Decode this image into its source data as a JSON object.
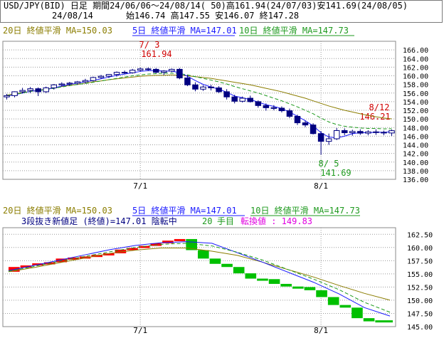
{
  "header": {
    "line1": "USD/JPY(BID) 日足 期間24/06/06～24/08/14( 50)高161.94(24/07/03)安141.69(24/08/05)",
    "date": "24/08/14",
    "ohlc": "始146.74 高147.55 安146.07 終147.28"
  },
  "colors": {
    "ma20": "#8b7d00",
    "ma5": "#1a1aff",
    "ma10": "#1e9a1e",
    "candle_down": "#000080",
    "high_label": "#d00000",
    "low_label": "#00a000",
    "brick_up": "#ff0000",
    "brick_down": "#00c000",
    "turn_value": "#e000e0",
    "grid": "#9a9a9a"
  },
  "top_panel": {
    "legend": {
      "ma20": "20日 終値平滑 MA=150.03",
      "ma5": "5日 終値平滑 MA=147.01",
      "ma10": "10日 終値平滑 MA=147.73"
    },
    "annotations": {
      "high_date": "7/ 3",
      "high_value": "161.94",
      "low_date": "8/ 5",
      "low_value": "141.69",
      "last_date": "8/12",
      "last_value": "146.21"
    }
  },
  "bottom_panel": {
    "legend": {
      "ma20": "20日 終値平滑 MA=150.03",
      "ma5": "5日 終値平滑 MA=147.01",
      "ma10": "10日 終値平滑 MA=147.73"
    },
    "status_line": "3段抜き新値足 (終値)=147.01 陰転中",
    "step_num": "20",
    "step_label": "手目",
    "turn_label": "転換値 : 149.83"
  },
  "chart_data": [
    {
      "type": "candlestick",
      "title": "USD/JPY(BID) 日足",
      "x_tick_labels": [
        "7/1",
        "8/1"
      ],
      "x_tick_index": [
        17,
        40
      ],
      "ylim": [
        136,
        168
      ],
      "y_ticks": [
        "136.00",
        "138.00",
        "140.00",
        "142.00",
        "144.00",
        "146.00",
        "148.00",
        "150.00",
        "152.00",
        "154.00",
        "156.00",
        "158.00",
        "160.00",
        "162.00",
        "164.00",
        "166.00"
      ],
      "grid": true,
      "ohlc": [
        [
          155.1,
          155.8,
          154.5,
          155.4
        ],
        [
          155.4,
          156.4,
          155.0,
          156.3
        ],
        [
          156.3,
          157.2,
          155.9,
          156.6
        ],
        [
          156.6,
          157.4,
          156.0,
          157.0
        ],
        [
          157.0,
          157.3,
          155.3,
          156.3
        ],
        [
          156.3,
          157.5,
          156.0,
          157.2
        ],
        [
          157.2,
          158.1,
          156.8,
          157.9
        ],
        [
          157.9,
          158.5,
          157.5,
          158.1
        ],
        [
          158.1,
          158.6,
          157.7,
          158.3
        ],
        [
          158.3,
          158.8,
          157.9,
          158.6
        ],
        [
          158.6,
          159.3,
          158.2,
          158.9
        ],
        [
          158.9,
          159.8,
          158.7,
          159.6
        ],
        [
          159.6,
          160.2,
          159.3,
          159.9
        ],
        [
          159.9,
          160.4,
          159.5,
          160.3
        ],
        [
          160.3,
          161.0,
          159.8,
          160.8
        ],
        [
          160.8,
          161.2,
          160.4,
          160.7
        ],
        [
          160.7,
          161.6,
          160.5,
          161.3
        ],
        [
          161.3,
          161.9,
          161.0,
          161.6
        ],
        [
          161.6,
          161.94,
          161.1,
          161.5
        ],
        [
          161.5,
          161.8,
          160.6,
          160.8
        ],
        [
          160.8,
          161.3,
          160.2,
          161.1
        ],
        [
          161.1,
          161.7,
          160.8,
          161.5
        ],
        [
          161.5,
          161.8,
          159.2,
          159.5
        ],
        [
          159.5,
          160.2,
          157.6,
          157.9
        ],
        [
          157.9,
          158.5,
          156.4,
          156.9
        ],
        [
          156.9,
          157.8,
          156.5,
          157.4
        ],
        [
          157.4,
          157.9,
          156.6,
          157.2
        ],
        [
          157.2,
          157.6,
          156.0,
          156.3
        ],
        [
          156.3,
          156.9,
          154.5,
          155.1
        ],
        [
          155.1,
          155.6,
          153.6,
          154.1
        ],
        [
          154.1,
          155.2,
          153.8,
          154.8
        ],
        [
          154.8,
          155.4,
          153.8,
          154.0
        ],
        [
          154.0,
          154.3,
          152.6,
          153.1
        ],
        [
          153.1,
          153.6,
          151.9,
          152.6
        ],
        [
          152.6,
          153.2,
          152.0,
          152.5
        ],
        [
          152.5,
          152.9,
          151.5,
          151.9
        ],
        [
          151.9,
          152.4,
          150.2,
          150.6
        ],
        [
          150.6,
          151.0,
          148.6,
          149.1
        ],
        [
          149.1,
          149.6,
          148.1,
          148.6
        ],
        [
          148.6,
          149.0,
          146.4,
          146.6
        ],
        [
          146.6,
          147.2,
          141.69,
          144.8
        ],
        [
          144.8,
          146.6,
          144.0,
          145.4
        ],
        [
          145.4,
          147.9,
          145.1,
          147.3
        ],
        [
          147.3,
          147.8,
          146.2,
          146.8
        ],
        [
          146.8,
          147.5,
          146.1,
          147.1
        ],
        [
          147.1,
          147.6,
          146.3,
          146.7
        ],
        [
          146.7,
          147.4,
          146.2,
          147.0
        ],
        [
          147.0,
          147.6,
          146.3,
          146.9
        ],
        [
          146.9,
          147.3,
          146.21,
          146.74
        ],
        [
          146.74,
          147.55,
          146.07,
          147.28
        ]
      ],
      "series": [
        {
          "name": "20日 終値平滑",
          "values": [
            155.5,
            155.8,
            156.1,
            156.4,
            156.6,
            156.9,
            157.2,
            157.5,
            157.8,
            158.0,
            158.3,
            158.6,
            158.8,
            159.1,
            159.3,
            159.5,
            159.7,
            159.9,
            160.0,
            160.1,
            160.1,
            160.2,
            160.1,
            160.0,
            159.8,
            159.6,
            159.4,
            159.1,
            158.8,
            158.5,
            158.2,
            157.9,
            157.5,
            157.1,
            156.7,
            156.3,
            155.8,
            155.3,
            154.8,
            154.2,
            153.6,
            153.0,
            152.5,
            152.0,
            151.6,
            151.2,
            150.8,
            150.5,
            150.2,
            150.03
          ]
        },
        {
          "name": "5日 終値平滑",
          "values": [
            155.3,
            155.6,
            156.0,
            156.4,
            156.6,
            156.8,
            157.2,
            157.6,
            158.0,
            158.3,
            158.6,
            158.9,
            159.3,
            159.7,
            160.1,
            160.4,
            160.7,
            161.0,
            161.2,
            161.2,
            161.1,
            161.1,
            160.7,
            159.9,
            158.9,
            158.0,
            157.4,
            156.9,
            156.2,
            155.3,
            154.9,
            154.5,
            153.9,
            153.3,
            152.9,
            152.4,
            151.6,
            150.6,
            149.6,
            148.4,
            146.8,
            145.8,
            145.6,
            146.0,
            146.6,
            146.8,
            146.8,
            146.9,
            146.9,
            147.01
          ]
        },
        {
          "name": "10日 終値平滑",
          "values": [
            155.4,
            155.7,
            156.0,
            156.4,
            156.6,
            156.8,
            157.1,
            157.4,
            157.7,
            158.0,
            158.2,
            158.5,
            158.8,
            159.1,
            159.4,
            159.7,
            160.0,
            160.2,
            160.4,
            160.5,
            160.6,
            160.6,
            160.5,
            160.2,
            159.8,
            159.4,
            159.0,
            158.6,
            158.1,
            157.5,
            157.0,
            156.5,
            156.0,
            155.4,
            154.8,
            154.2,
            153.5,
            152.8,
            152.0,
            151.2,
            150.2,
            149.3,
            148.7,
            148.3,
            148.1,
            147.9,
            147.8,
            147.8,
            147.7,
            147.73
          ]
        }
      ]
    },
    {
      "type": "bar",
      "title": "3段抜き新値足 (終値)",
      "x_tick_labels": [
        "7/1",
        "8/1"
      ],
      "ylim": [
        145,
        163.75
      ],
      "y_ticks": [
        "145.00",
        "147.50",
        "150.00",
        "152.50",
        "155.00",
        "157.50",
        "160.00",
        "162.50"
      ],
      "grid": true,
      "bricks": [
        {
          "dir": "up",
          "from": 155.4,
          "to": 156.3
        },
        {
          "dir": "up",
          "from": 156.3,
          "to": 156.6
        },
        {
          "dir": "up",
          "from": 156.6,
          "to": 157.0
        },
        {
          "dir": "up",
          "from": 157.0,
          "to": 157.2
        },
        {
          "dir": "up",
          "from": 157.2,
          "to": 157.9
        },
        {
          "dir": "up",
          "from": 157.9,
          "to": 158.1
        },
        {
          "dir": "up",
          "from": 158.1,
          "to": 158.3
        },
        {
          "dir": "up",
          "from": 158.3,
          "to": 158.6
        },
        {
          "dir": "up",
          "from": 158.6,
          "to": 158.9
        },
        {
          "dir": "up",
          "from": 158.9,
          "to": 159.6
        },
        {
          "dir": "up",
          "from": 159.6,
          "to": 159.9
        },
        {
          "dir": "up",
          "from": 159.9,
          "to": 160.3
        },
        {
          "dir": "up",
          "from": 160.3,
          "to": 160.8
        },
        {
          "dir": "up",
          "from": 160.8,
          "to": 161.3
        },
        {
          "dir": "up",
          "from": 161.3,
          "to": 161.6
        },
        {
          "dir": "down",
          "from": 161.6,
          "to": 159.5
        },
        {
          "dir": "down",
          "from": 159.5,
          "to": 157.9
        },
        {
          "dir": "down",
          "from": 157.9,
          "to": 156.9
        },
        {
          "dir": "down",
          "from": 156.9,
          "to": 156.3
        },
        {
          "dir": "down",
          "from": 156.3,
          "to": 155.1
        },
        {
          "dir": "down",
          "from": 155.1,
          "to": 154.1
        },
        {
          "dir": "down",
          "from": 154.1,
          "to": 154.0
        },
        {
          "dir": "down",
          "from": 154.0,
          "to": 153.1
        },
        {
          "dir": "down",
          "from": 153.1,
          "to": 152.6
        },
        {
          "dir": "down",
          "from": 152.6,
          "to": 152.5
        },
        {
          "dir": "down",
          "from": 152.5,
          "to": 151.9
        },
        {
          "dir": "down",
          "from": 151.9,
          "to": 150.6
        },
        {
          "dir": "down",
          "from": 150.6,
          "to": 149.1
        },
        {
          "dir": "down",
          "from": 149.1,
          "to": 148.6
        },
        {
          "dir": "down",
          "from": 148.6,
          "to": 146.6
        },
        {
          "dir": "down",
          "from": 146.6,
          "to": 146.0
        }
      ],
      "series": [
        {
          "name": "20日 終値平滑",
          "values": [
            155.4,
            156.2,
            157.1,
            158.0,
            158.9,
            159.5,
            159.9,
            159.9,
            159.3,
            158.5,
            157.2,
            155.8,
            154.4,
            152.8,
            151.3,
            150.03
          ]
        },
        {
          "name": "5日 終値平滑",
          "values": [
            155.6,
            156.6,
            157.6,
            158.6,
            159.6,
            160.4,
            160.9,
            161.1,
            160.8,
            159.0,
            157.2,
            155.3,
            153.4,
            151.2,
            148.6,
            147.01
          ]
        },
        {
          "name": "10日 終値平滑",
          "values": [
            155.5,
            156.4,
            157.4,
            158.3,
            159.2,
            160.0,
            160.6,
            160.8,
            160.3,
            159.1,
            157.6,
            155.8,
            154.0,
            152.0,
            149.6,
            147.73
          ]
        }
      ]
    }
  ]
}
